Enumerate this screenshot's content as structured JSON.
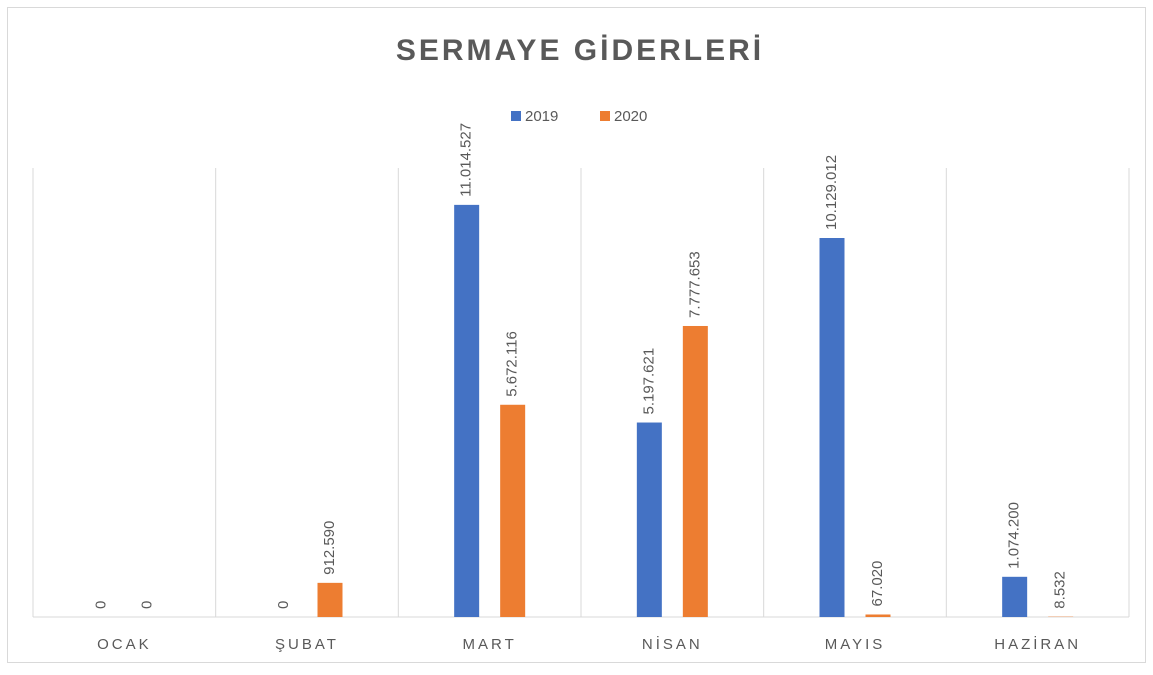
{
  "chart_data": {
    "type": "bar",
    "title": "SERMAYE GİDERLERİ",
    "categories": [
      "OCAK",
      "ŞUBAT",
      "MART",
      "NİSAN",
      "MAYIS",
      "HAZİRAN"
    ],
    "series": [
      {
        "name": "2019",
        "color": "#4472c4",
        "values": [
          0,
          0,
          11014527,
          5197621,
          10129012,
          1074200
        ],
        "value_labels": [
          "0",
          "0",
          "11.014.527",
          "5.197.621",
          "10.129.012",
          "1.074.200"
        ]
      },
      {
        "name": "2020",
        "color": "#ed7d31",
        "values": [
          0,
          912590,
          5672116,
          7777653,
          67020,
          8532
        ],
        "value_labels": [
          "0",
          "912.590",
          "5.672.116",
          "7.777.653",
          "67.020",
          "8.532"
        ]
      }
    ],
    "ylim": [
      0,
      12000000
    ],
    "legend": "top"
  }
}
